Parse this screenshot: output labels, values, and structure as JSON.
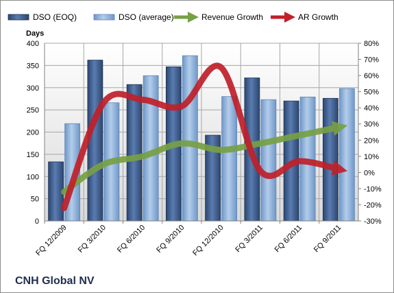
{
  "chart_data": {
    "type": "bar",
    "title": "CNH Global NV",
    "ylabel": "Days",
    "ylim": [
      0,
      400
    ],
    "y_ticks": [
      "0",
      "50",
      "100",
      "150",
      "200",
      "250",
      "300",
      "350",
      "400"
    ],
    "y2lim": [
      -30,
      80
    ],
    "y2_ticks": [
      "-30%",
      "-20%",
      "-10%",
      "0%",
      "10%",
      "20%",
      "30%",
      "40%",
      "50%",
      "60%",
      "70%",
      "80%"
    ],
    "categories": [
      "FQ 12/2009",
      "FQ 3/2010",
      "FQ 6/2010",
      "FQ 9/2010",
      "FQ 12/2010",
      "FQ 3/2011",
      "FQ 6/2011",
      "FQ 9/2011"
    ],
    "legend_position": "top",
    "grid": true,
    "bar_series": [
      {
        "name": "DSO (EOQ)",
        "values": [
          133,
          362,
          307,
          347,
          193,
          322,
          270,
          276
        ],
        "color": "#3a5a8c"
      },
      {
        "name": "DSO (average)",
        "values": [
          219,
          266,
          327,
          372,
          280,
          273,
          279,
          298
        ],
        "color": "#8db4e2"
      }
    ],
    "line_series": [
      {
        "name": "Revenue Growth",
        "axis": "secondary",
        "values": [
          -12,
          5,
          10,
          18,
          14,
          18,
          23,
          28
        ],
        "color": "#77a045"
      },
      {
        "name": "AR Growth",
        "axis": "secondary",
        "values": [
          -22,
          43,
          45,
          41,
          65,
          1,
          7,
          2
        ],
        "color": "#c0202a"
      }
    ]
  }
}
